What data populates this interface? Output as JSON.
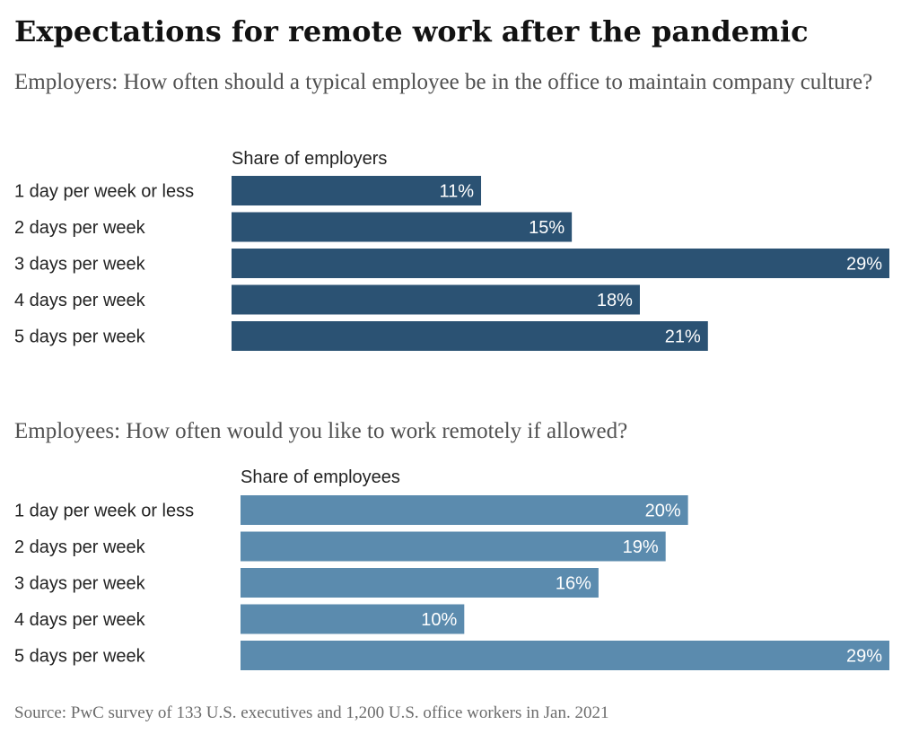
{
  "header": {
    "title": "Expectations for remote work after the pandemic"
  },
  "footer": {
    "source": "Source: PwC survey of 133 U.S. executives and 1,200 U.S. office workers in Jan. 2021"
  },
  "chart_data": [
    {
      "type": "bar",
      "orientation": "horizontal",
      "title": "Employers: How often should a typical employee be in the office to maintain company culture?",
      "xlabel": "Share of employers",
      "categories": [
        "1 day per week or less",
        "2 days per week",
        "3 days per week",
        "4 days per week",
        "5 days per week"
      ],
      "values": [
        11,
        15,
        29,
        18,
        21
      ],
      "value_labels": [
        "11%",
        "15%",
        "29%",
        "18%",
        "21%"
      ],
      "xlim": [
        0,
        29
      ],
      "color": "#2b5273",
      "grid": false
    },
    {
      "type": "bar",
      "orientation": "horizontal",
      "title": "Employees: How often would you like to work remotely if allowed?",
      "xlabel": "Share of employees",
      "categories": [
        "1 day per week or less",
        "2 days per week",
        "3 days per week",
        "4 days per week",
        "5 days per week"
      ],
      "values": [
        20,
        19,
        16,
        10,
        29
      ],
      "value_labels": [
        "20%",
        "19%",
        "16%",
        "10%",
        "29%"
      ],
      "xlim": [
        0,
        29
      ],
      "color": "#5b8bae",
      "grid": false
    }
  ]
}
